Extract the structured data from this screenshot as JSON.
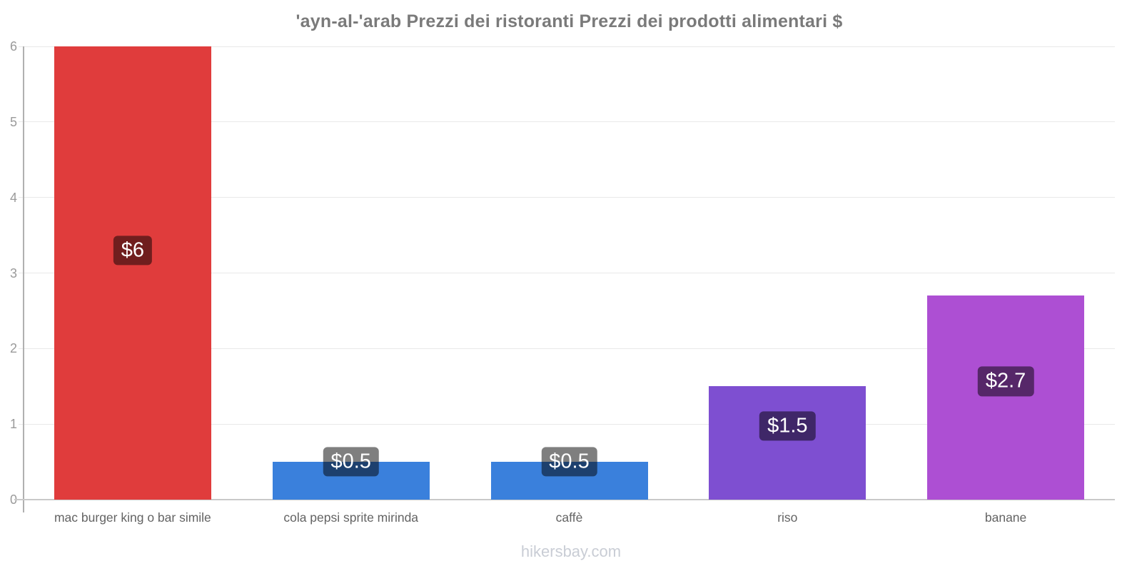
{
  "page": {
    "title": "'ayn-al-'arab Prezzi dei ristoranti Prezzi dei prodotti alimentari $",
    "footer": "hikersbay.com"
  },
  "chart_data": {
    "type": "bar",
    "title": "'ayn-al-'arab Prezzi dei ristoranti Prezzi dei prodotti alimentari $",
    "categories": [
      "mac burger king o bar simile",
      "cola pepsi sprite mirinda",
      "caffè",
      "riso",
      "banane"
    ],
    "values": [
      6,
      0.5,
      0.5,
      1.5,
      2.7
    ],
    "data_labels": [
      "$6",
      "$0.5",
      "$0.5",
      "$1.5",
      "$2.7"
    ],
    "bar_colors": [
      "#e03c3c",
      "#3a80dc",
      "#3a80dc",
      "#7e4fd1",
      "#ad4fd3"
    ],
    "currency": "$",
    "xlabel": "",
    "ylabel": "",
    "ylim": [
      0,
      6
    ],
    "yticks": [
      0,
      1,
      2,
      3,
      4,
      5,
      6
    ],
    "grid": true,
    "legend_position": "none",
    "value_label_bg": "rgba(0,0,0,0.5)",
    "value_label_color": "#ffffff",
    "watermark": "hikersbay.com"
  }
}
